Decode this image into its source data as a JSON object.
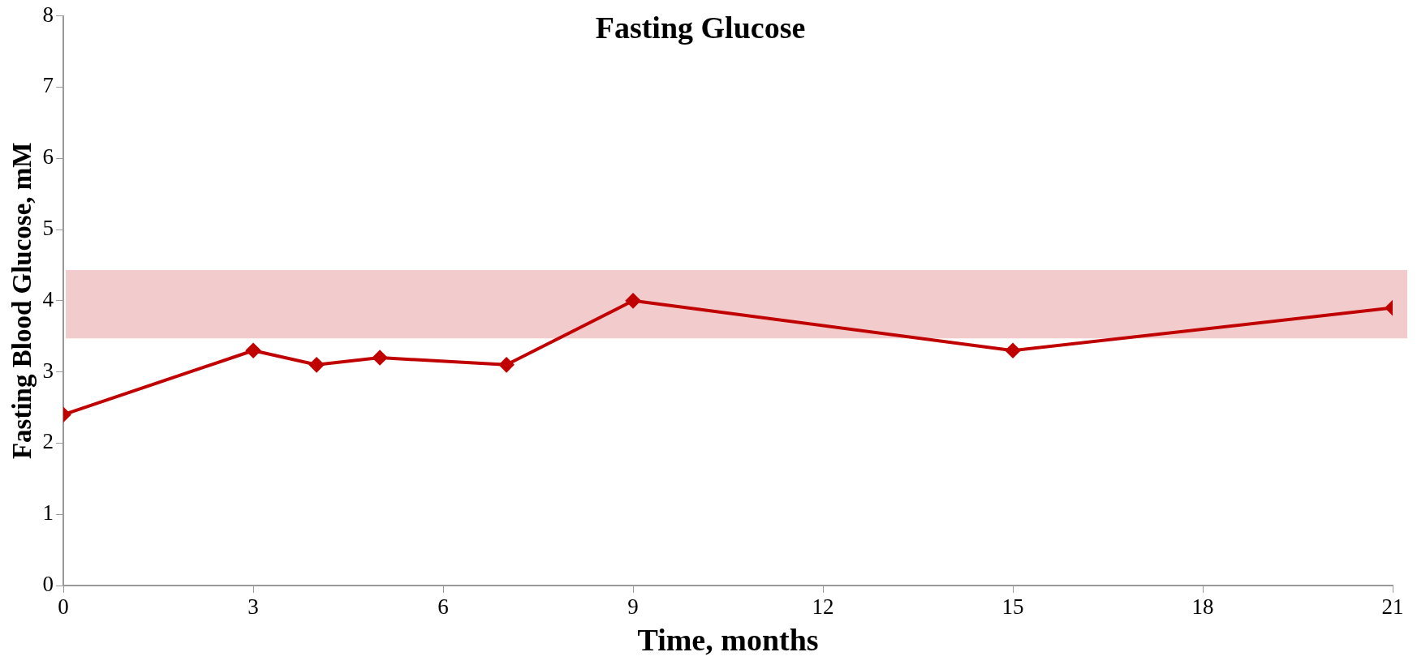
{
  "chart_data": {
    "type": "line",
    "title": "Fasting Glucose",
    "xlabel": "Time, months",
    "ylabel": "Fasting Blood Glucose, mM",
    "x": [
      0,
      3,
      4,
      5,
      7,
      9,
      15,
      21
    ],
    "series": [
      {
        "color": "#c00000",
        "values": [
          2.4,
          3.3,
          3.1,
          3.2,
          3.1,
          4.0,
          3.3,
          3.9
        ]
      }
    ],
    "xlim": [
      0,
      21
    ],
    "xticks": [
      0,
      3,
      6,
      9,
      12,
      15,
      18,
      21
    ],
    "ylim": [
      0,
      8
    ],
    "yticks": [
      0,
      1,
      2,
      3,
      4,
      5,
      6,
      7,
      8
    ],
    "bands": [
      {
        "axis": "y",
        "from": 3.47,
        "to": 4.43,
        "color": "#f2cccc"
      }
    ],
    "grid": false,
    "legend": false,
    "marker": "diamond",
    "line_style": "solid"
  }
}
